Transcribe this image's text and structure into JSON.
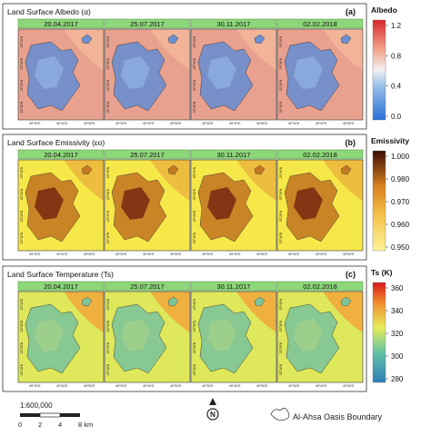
{
  "panels": [
    {
      "id": "a",
      "title": "Land Surface Albedo (α)",
      "label": "(a)",
      "dates": [
        "20.04.2017",
        "25.07.2017",
        "30.11.2017",
        "02.02.2018"
      ],
      "legend": {
        "title": "Albedo",
        "ticks": [
          "1.2",
          "0.8",
          "0.4",
          "0.0"
        ]
      },
      "colors": [
        "#e9a18f",
        "#f2b99a",
        "#6b8fd0",
        "#8fb0e0"
      ]
    },
    {
      "id": "b",
      "title": "Land Surface Emissivity (εo)",
      "label": "(b)",
      "dates": [
        "20.04.2017",
        "25.07.2017",
        "30.11.2017",
        "02.02.2018"
      ],
      "legend": {
        "title": "Emissivity",
        "ticks": [
          "1.000",
          "0.980",
          "0.970",
          "0.960",
          "0.950"
        ]
      },
      "colors": [
        "#f7e84a",
        "#e9b13b",
        "#c57a22",
        "#6e1b0e"
      ]
    },
    {
      "id": "c",
      "title": "Land Surface Temperature (Ts)",
      "label": "(c)",
      "dates": [
        "20.04.2017",
        "25.07.2017",
        "30.11.2017",
        "02.02.2018"
      ],
      "legend": {
        "title": "Ts (K)",
        "ticks": [
          "360",
          "340",
          "320",
          "300",
          "280"
        ]
      },
      "colors": [
        "#dfe85a",
        "#f2a13a",
        "#7ec59a",
        "#a4d28a"
      ]
    }
  ],
  "grid_labels": {
    "lat": [
      "25°40'N",
      "25°30'N",
      "25°20'N",
      "25°10'N"
    ],
    "lon": [
      "49°30'E",
      "49°40'E",
      "49°50'E"
    ]
  },
  "scale": {
    "ratio": "1:600,000",
    "ticks": [
      "0",
      "2",
      "4",
      "8 km"
    ]
  },
  "north": "N",
  "boundary_legend": "Al-Ahsa Oasis Boundary"
}
